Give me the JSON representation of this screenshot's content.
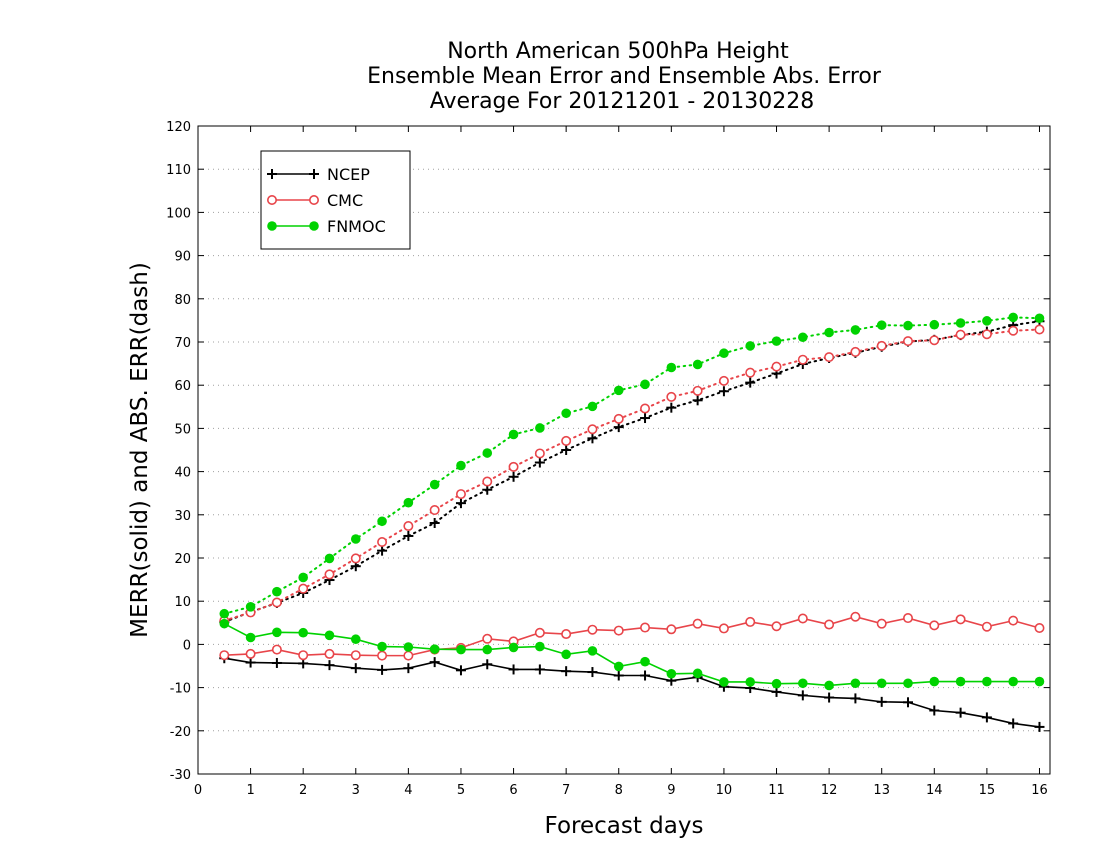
{
  "chart_data": {
    "type": "line",
    "title": [
      "North American 500hPa Height",
      "Ensemble Mean Error and Ensemble Abs. Error",
      "Average For 20121201 - 20130228"
    ],
    "xlabel": "Forecast days",
    "ylabel": "MERR(solid) and ABS. ERR(dash)",
    "xlim": [
      0,
      16.2
    ],
    "ylim": [
      -30,
      120
    ],
    "xticks": [
      0,
      1,
      2,
      3,
      4,
      5,
      6,
      7,
      8,
      9,
      10,
      11,
      12,
      13,
      14,
      15,
      16
    ],
    "yticks": [
      -30,
      -20,
      -10,
      0,
      10,
      20,
      30,
      40,
      50,
      60,
      70,
      80,
      90,
      100,
      110,
      120
    ],
    "grid": "horizontal dotted",
    "legend_position": "top-left",
    "x": [
      0.5,
      1,
      1.5,
      2,
      2.5,
      3,
      3.5,
      4,
      4.5,
      5,
      5.5,
      6,
      6.5,
      7,
      7.5,
      8,
      8.5,
      9,
      9.5,
      10,
      10.5,
      11,
      11.5,
      12,
      12.5,
      13,
      13.5,
      14,
      14.5,
      15,
      15.5,
      16
    ],
    "series": [
      {
        "name": "NCEP",
        "color": "#000000",
        "marker": "plus",
        "merr": [
          -3.2,
          -4.2,
          -4.3,
          -4.4,
          -4.8,
          -5.5,
          -5.9,
          -5.5,
          -4.1,
          -6,
          -4.6,
          -5.8,
          -5.8,
          -6.2,
          -6.4,
          -7.2,
          -7.2,
          -8.4,
          -7.6,
          -9.8,
          -10.1,
          -11,
          -11.8,
          -12.3,
          -12.5,
          -13.3,
          -13.4,
          -15.3,
          -15.8,
          -16.9,
          -18.3,
          -19.1
        ],
        "abs_err": [
          5.2,
          7.5,
          9.6,
          11.9,
          14.9,
          18.1,
          21.7,
          25.1,
          28.1,
          32.7,
          35.8,
          38.8,
          42.1,
          45,
          47.7,
          50.3,
          52.4,
          54.8,
          56.5,
          58.6,
          60.6,
          62.7,
          64.9,
          66.3,
          67.5,
          68.9,
          70.1,
          70.5,
          71.6,
          72.4,
          73.9,
          74.8
        ]
      },
      {
        "name": "CMC",
        "color": "#e8454a",
        "marker": "open-circle",
        "merr": [
          -2.5,
          -2.2,
          -1.2,
          -2.5,
          -2.2,
          -2.5,
          -2.6,
          -2.6,
          -1.2,
          -0.8,
          1.3,
          0.7,
          2.7,
          2.4,
          3.4,
          3.2,
          3.9,
          3.5,
          4.8,
          3.7,
          5.2,
          4.2,
          6,
          4.6,
          6.4,
          4.8,
          6.1,
          4.4,
          5.8,
          4.1,
          5.5,
          3.8
        ]
      },
      {
        "name": "FNMOC",
        "color": "#00d200",
        "marker": "filled-circle",
        "merr": [
          4.8,
          1.6,
          2.8,
          2.7,
          2.1,
          1.2,
          -0.5,
          -0.6,
          -1.1,
          -1.2,
          -1.2,
          -0.7,
          -0.5,
          -2.3,
          -1.5,
          -5.1,
          -4,
          -6.8,
          -6.7,
          -8.7,
          -8.7,
          -9.1,
          -9,
          -9.5,
          -9,
          -9,
          -9,
          -8.6,
          -8.6,
          -8.6,
          -8.6,
          -8.6
        ]
      }
    ],
    "cmc_abs_err": [
      5.5,
      7.4,
      9.7,
      12.9,
      16.2,
      19.9,
      23.7,
      27.4,
      31.1,
      34.8,
      37.7,
      41.1,
      44.2,
      47.1,
      49.8,
      52.2,
      54.6,
      57.3,
      58.7,
      61,
      62.9,
      64.3,
      65.9,
      66.5,
      67.7,
      69.1,
      70.2,
      70.4,
      71.7,
      71.8,
      72.6,
      72.9
    ],
    "fnmoc_abs_err": [
      7.1,
      8.7,
      12.2,
      15.5,
      19.9,
      24.4,
      28.5,
      32.8,
      37,
      41.4,
      44.3,
      48.6,
      50.1,
      53.5,
      55.1,
      58.8,
      60.2,
      64.1,
      64.8,
      67.4,
      69.1,
      70.2,
      71.1,
      72.2,
      72.8,
      73.9,
      73.8,
      74,
      74.4,
      74.9,
      75.7,
      75.5
    ]
  }
}
